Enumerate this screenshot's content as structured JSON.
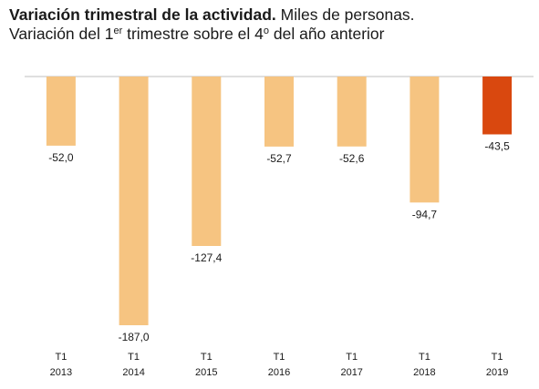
{
  "header": {
    "title_bold": "Variación trimestral de la actividad.",
    "title_rest": "Miles de personas.",
    "subtitle_a": "Variación del 1",
    "subtitle_sup1": "er",
    "subtitle_b": " trimestre sobre el 4",
    "subtitle_sup2": "o",
    "subtitle_c": " del año anterior"
  },
  "chart_data": {
    "type": "bar",
    "categories": [
      [
        "T1",
        "2013"
      ],
      [
        "T1",
        "2014"
      ],
      [
        "T1",
        "2015"
      ],
      [
        "T1",
        "2016"
      ],
      [
        "T1",
        "2017"
      ],
      [
        "T1",
        "2018"
      ],
      [
        "T1",
        "2019"
      ]
    ],
    "values": [
      -52.0,
      -187.0,
      -127.4,
      -52.7,
      -52.6,
      -94.7,
      -43.5
    ],
    "labels": [
      "-52,0",
      "-187,0",
      "-127,4",
      "-52,7",
      "-52,6",
      "-94,7",
      "-43,5"
    ],
    "colors": [
      "#f6c481",
      "#f6c481",
      "#f6c481",
      "#f6c481",
      "#f6c481",
      "#f6c481",
      "#d9480f"
    ],
    "axis_color": "#bfbfbf",
    "ylim": [
      -187,
      0
    ],
    "grid": false,
    "legend": "none",
    "title": "Variación trimestral de la actividad. Miles de personas.",
    "xlabel": "",
    "ylabel": ""
  }
}
